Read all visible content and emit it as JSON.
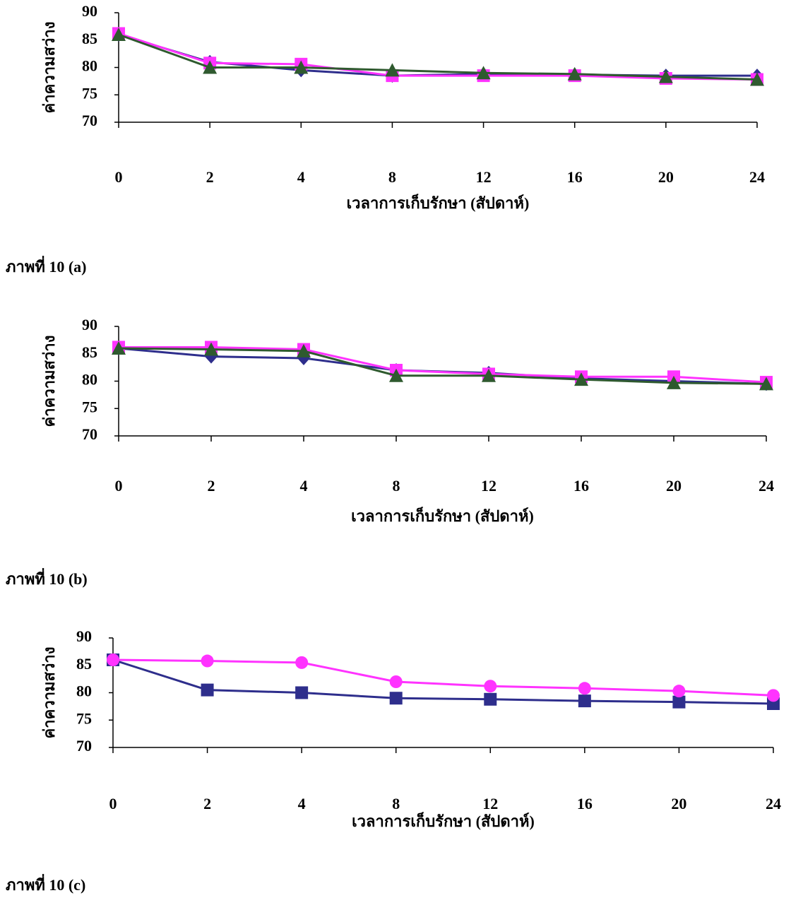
{
  "chart_data": [
    {
      "type": "line",
      "caption": "ภาพที่  10  (a)",
      "x_label": "เวลาการเก็บรักษา (สัปดาห์)",
      "y_label": "ค่าความสว่าง",
      "categories": [
        "0",
        "2",
        "4",
        "8",
        "12",
        "16",
        "20",
        "24"
      ],
      "ylim": [
        70,
        90
      ],
      "yticks": [
        70,
        75,
        80,
        85,
        90
      ],
      "series": [
        {
          "color": "#2e2e8c",
          "marker": "diamond",
          "values": [
            86,
            81,
            79.5,
            78.5,
            78.8,
            78.7,
            78.5,
            78.5
          ]
        },
        {
          "color": "#ff33ff",
          "marker": "square",
          "values": [
            86.2,
            80.8,
            80.6,
            78.5,
            78.5,
            78.5,
            78,
            77.8
          ]
        },
        {
          "color": "#2f5a2f",
          "marker": "triangle",
          "values": [
            86,
            80,
            80,
            79.5,
            79,
            78.8,
            78.3,
            77.8
          ]
        }
      ]
    },
    {
      "type": "line",
      "caption": "ภาพที่  10  (b)",
      "x_label": "เวลาการเก็บรักษา (สัปดาห์)",
      "y_label": "ค่าความสว่าง",
      "categories": [
        "0",
        "2",
        "4",
        "8",
        "12",
        "16",
        "20",
        "24"
      ],
      "ylim": [
        70,
        90
      ],
      "yticks": [
        70,
        75,
        80,
        85,
        90
      ],
      "series": [
        {
          "color": "#2e2e8c",
          "marker": "diamond",
          "values": [
            86,
            84.5,
            84.2,
            82,
            81.5,
            80.5,
            80,
            79.5
          ]
        },
        {
          "color": "#ff33ff",
          "marker": "square",
          "values": [
            86.2,
            86.2,
            85.8,
            82,
            81.3,
            80.8,
            80.8,
            79.8
          ]
        },
        {
          "color": "#2f5a2f",
          "marker": "triangle",
          "values": [
            86,
            85.8,
            85.5,
            81,
            81,
            80.3,
            79.7,
            79.5
          ]
        }
      ]
    },
    {
      "type": "line",
      "caption": "ภาพที่  10  (c)",
      "x_label": "เวลาการเก็บรักษา (สัปดาห์)",
      "y_label": "ค่าความสว่าง",
      "categories": [
        "0",
        "2",
        "4",
        "8",
        "12",
        "16",
        "20",
        "24"
      ],
      "ylim": [
        70,
        90
      ],
      "yticks": [
        70,
        75,
        80,
        85,
        90
      ],
      "series": [
        {
          "color": "#2e2e8c",
          "marker": "square",
          "values": [
            86,
            80.5,
            80,
            79,
            78.8,
            78.5,
            78.3,
            78
          ]
        },
        {
          "color": "#ff33ff",
          "marker": "circle",
          "values": [
            86,
            85.8,
            85.5,
            82,
            81.2,
            80.8,
            80.3,
            79.5
          ]
        }
      ]
    }
  ]
}
